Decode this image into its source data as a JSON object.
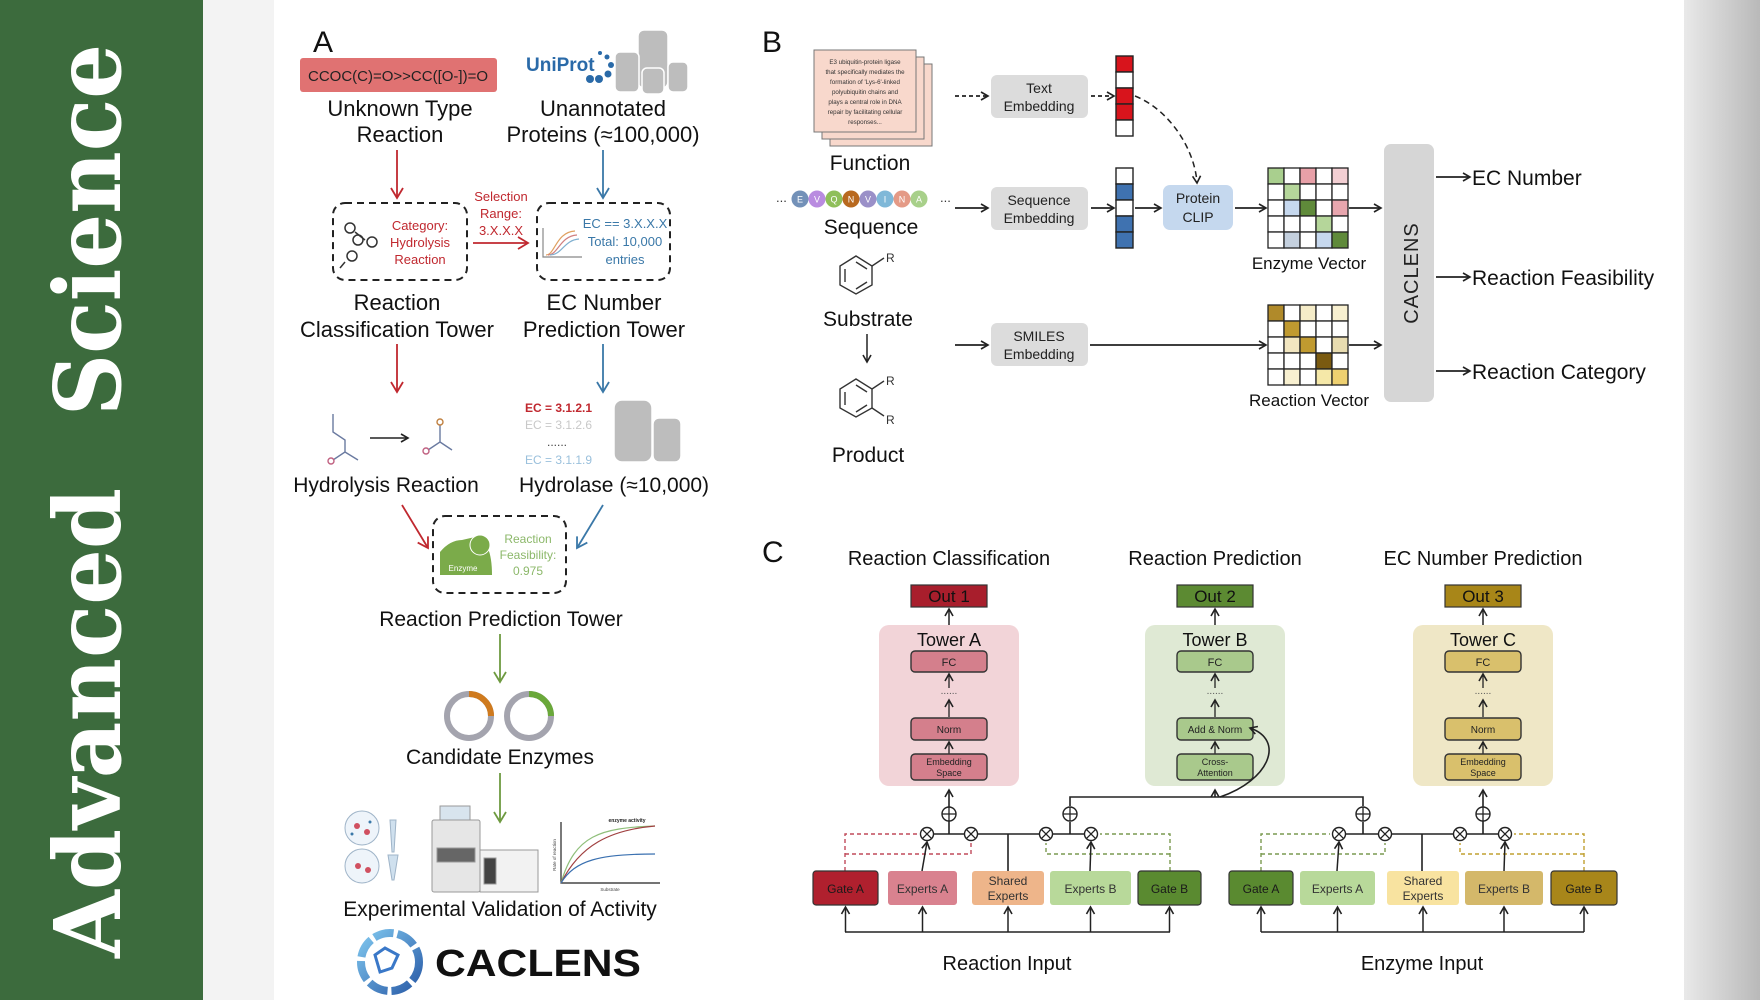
{
  "sidebar": {
    "word1": "Advanced",
    "word2": "Science",
    "color": "#3c6b3d"
  },
  "panel_a": {
    "label": "A",
    "smiles": "CCOC(C)=O>>CC([O-])=O",
    "uniprot": "UniProt",
    "unknown_reaction": [
      "Unknown Type",
      "Reaction"
    ],
    "unannotated": [
      "Unannotated",
      "Proteins (≈100,000)"
    ],
    "category": [
      "Category:",
      "Hydrolysis",
      "Reaction"
    ],
    "selection": [
      "Selection",
      "Range:",
      "3.X.X.X"
    ],
    "ec_filter": [
      "EC == 3.X.X.X",
      "Total: 10,000",
      "entries"
    ],
    "classification_tower": [
      "Reaction",
      "Classification Tower"
    ],
    "ec_tower": [
      "EC Number",
      "Prediction Tower"
    ],
    "hydrolysis": "Hydrolysis Reaction",
    "ec_list": [
      "EC = 3.1.2.1",
      "EC = 3.1.2.6",
      "......",
      "EC = 3.1.1.9"
    ],
    "hydrolase": "Hydrolase (≈10,000)",
    "enzyme": "Enzyme",
    "feasibility": [
      "Reaction",
      "Feasibility:",
      "0.975"
    ],
    "prediction_tower": "Reaction Prediction Tower",
    "candidates": "Candidate Enzymes",
    "plot": {
      "title": "enzyme activity",
      "ylabel": "Rate of reaction",
      "xlabel": "Substrate"
    },
    "validation": "Experimental Validation of Activity",
    "logo": "CACLENS",
    "colors": {
      "red": "#c0282f",
      "blue": "#3a78a8",
      "green": "#6e9a40",
      "smiles_bg": "#e07272"
    }
  },
  "panel_b": {
    "label": "B",
    "doc_lines": [
      "E3 ubiquitin-protein ligase",
      "that specifically mediates the",
      "formation of 'Lys-6'-linked",
      "polyubiquitin chains and",
      "plays a central role in DNA",
      "repair by facilitating cellular",
      "responses..."
    ],
    "function": "Function",
    "sequence_letters": [
      "E",
      "V",
      "Q",
      "N",
      "V",
      "I",
      "N",
      "A"
    ],
    "sequence_colors": [
      "#7391b8",
      "#b98be0",
      "#8fbf5a",
      "#b8691f",
      "#9a90c8",
      "#7fb8d8",
      "#e49a86",
      "#a8d08a"
    ],
    "ellipsis": "...",
    "sequence": "Sequence",
    "substrate": "Substrate",
    "product": "Product",
    "r_group": "R",
    "text_embedding": [
      "Text",
      "Embedding"
    ],
    "sequence_embedding": [
      "Sequence",
      "Embedding"
    ],
    "smiles_embedding": [
      "SMILES",
      "Embedding"
    ],
    "protein_clip": [
      "Protein",
      "CLIP"
    ],
    "text_vector_colors": [
      "#d8141c",
      "#ffffff",
      "#d8141c",
      "#d8141c",
      "#ffffff"
    ],
    "seq_vector_colors": [
      "#ffffff",
      "#3f72b0",
      "#ffffff",
      "#3f72b0",
      "#3f72b0"
    ],
    "enzyme_grid": [
      [
        "#a9cf8e",
        "#ffffff",
        "#e8a0a8",
        "#ffffff",
        "#f3cfd3"
      ],
      [
        "#ffffff",
        "#b5d69a",
        "#ffffff",
        "#ffffff",
        "#ffffff"
      ],
      [
        "#ffffff",
        "#c6d8ee",
        "#5f8a3a",
        "#ffffff",
        "#e8a6ae"
      ],
      [
        "#ffffff",
        "#ffffff",
        "#ffffff",
        "#b5d69a",
        "#ffffff"
      ],
      [
        "#ffffff",
        "#c4d0de",
        "#ffffff",
        "#c6d8ee",
        "#5f8a3a"
      ]
    ],
    "reaction_grid": [
      [
        "#b08a2a",
        "#ffffff",
        "#f5ecc8",
        "#ffffff",
        "#f8f0d0"
      ],
      [
        "#ffffff",
        "#c09a30",
        "#ffffff",
        "#ffffff",
        "#ffffff"
      ],
      [
        "#ffffff",
        "#f2e6c0",
        "#c09a30",
        "#ffffff",
        "#e8dcb0"
      ],
      [
        "#ffffff",
        "#ffffff",
        "#ffffff",
        "#7a5a10",
        "#ffffff"
      ],
      [
        "#ffffff",
        "#f8f0d0",
        "#ffffff",
        "#f5e8a8",
        "#eed070"
      ]
    ],
    "enzyme_vector": "Enzyme Vector",
    "reaction_vector": "Reaction Vector",
    "caclens": "CACLENS",
    "outputs": [
      "EC Number",
      "Reaction Feasibility",
      "Reaction Category"
    ]
  },
  "panel_c": {
    "label": "C",
    "towers": [
      {
        "heading": "Reaction Classification",
        "out": "Out 1",
        "name": "Tower A",
        "layers": [
          "FC",
          "......",
          "Norm",
          "Embedding",
          "Space"
        ],
        "out_color": "#a81e2c",
        "bg": "#f2d4d8",
        "box": "#d47f8c"
      },
      {
        "heading": "Reaction Prediction",
        "out": "Out 2",
        "name": "Tower B",
        "layers": [
          "FC",
          "......",
          "Add & Norm",
          "Cross-",
          "Attention"
        ],
        "out_color": "#5c8a32",
        "bg": "#dfe9d4",
        "box": "#a9c98c"
      },
      {
        "heading": "EC Number Prediction",
        "out": "Out 3",
        "name": "Tower C",
        "layers": [
          "FC",
          "......",
          "Norm",
          "Embedding",
          "Space"
        ],
        "out_color": "#a88618",
        "bg": "#efe7c6",
        "box": "#d9c06c"
      }
    ],
    "left_boxes": [
      {
        "label": [
          "Gate A"
        ],
        "color": "#b0202e"
      },
      {
        "label": [
          "Experts A"
        ],
        "color": "#d9828f"
      },
      {
        "label": [
          "Shared",
          "Experts"
        ],
        "color": "#eeb58a"
      },
      {
        "label": [
          "Experts B"
        ],
        "color": "#b8d99a"
      },
      {
        "label": [
          "Gate B"
        ],
        "color": "#5a8a30"
      }
    ],
    "right_boxes": [
      {
        "label": [
          "Gate A"
        ],
        "color": "#5a8a30"
      },
      {
        "label": [
          "Experts A"
        ],
        "color": "#b8d99a"
      },
      {
        "label": [
          "Shared",
          "Experts"
        ],
        "color": "#f8e3a0"
      },
      {
        "label": [
          "Experts B"
        ],
        "color": "#d4b86a"
      },
      {
        "label": [
          "Gate B"
        ],
        "color": "#a8861a"
      }
    ],
    "reaction_input": "Reaction Input",
    "enzyme_input": "Enzyme Input"
  }
}
